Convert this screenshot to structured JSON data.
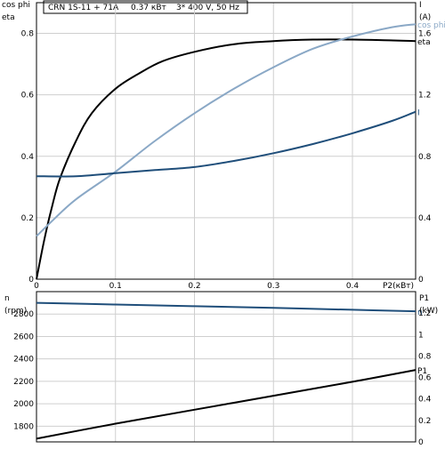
{
  "header": {
    "model": "CRN 1S-11 + 71A",
    "power": "0.37 кВт",
    "supply": "3* 400 V, 50 Hz"
  },
  "colors": {
    "eta": "#000000",
    "cos_phi": "#8aa8c6",
    "current": "#1f4e7a",
    "speed": "#1f4e7a",
    "p1": "#000000",
    "grid": "#cfcfcf",
    "axis": "#000000"
  },
  "chart_data": [
    {
      "type": "line",
      "xlabel": "P2(кВт)",
      "xlim": [
        0,
        0.48
      ],
      "x_ticks": [
        0,
        0.1,
        0.2,
        0.3,
        0.4
      ],
      "x_tick_labels": [
        "0",
        "0.1",
        "0.2",
        "0.3",
        "0.4"
      ],
      "y_left": {
        "labels": [
          "cos phi",
          "eta"
        ],
        "lim": [
          0,
          0.9
        ],
        "ticks": [
          0,
          0.2,
          0.4,
          0.6,
          0.8
        ],
        "tick_labels": [
          "0",
          "0.2",
          "0.4",
          "0.6",
          "0.8"
        ]
      },
      "y_right": {
        "labels": [
          "I",
          "(A)"
        ],
        "lim": [
          0,
          1.8
        ],
        "ticks": [
          0,
          0.4,
          0.8,
          1.2,
          1.6
        ],
        "tick_labels": [
          "0",
          "0.4",
          "0.8",
          "1.2",
          "1.6"
        ]
      },
      "series": [
        {
          "name": "eta",
          "axis": "left",
          "color_key": "eta",
          "x": [
            0,
            0.01,
            0.02,
            0.03,
            0.05,
            0.07,
            0.1,
            0.13,
            0.16,
            0.2,
            0.25,
            0.3,
            0.35,
            0.4,
            0.44,
            0.48
          ],
          "y": [
            0,
            0.13,
            0.24,
            0.33,
            0.45,
            0.54,
            0.62,
            0.67,
            0.71,
            0.74,
            0.765,
            0.775,
            0.78,
            0.78,
            0.778,
            0.775
          ]
        },
        {
          "name": "cos phi",
          "axis": "left",
          "color_key": "cos_phi",
          "x": [
            0,
            0.02,
            0.05,
            0.1,
            0.15,
            0.2,
            0.25,
            0.3,
            0.35,
            0.4,
            0.45,
            0.48
          ],
          "y": [
            0.14,
            0.19,
            0.26,
            0.35,
            0.45,
            0.54,
            0.62,
            0.69,
            0.75,
            0.79,
            0.82,
            0.83
          ]
        },
        {
          "name": "I",
          "axis": "right",
          "color_key": "current",
          "x": [
            0,
            0.05,
            0.1,
            0.15,
            0.2,
            0.25,
            0.3,
            0.35,
            0.4,
            0.45,
            0.48
          ],
          "y": [
            0.67,
            0.67,
            0.69,
            0.71,
            0.73,
            0.77,
            0.82,
            0.88,
            0.95,
            1.03,
            1.09
          ]
        }
      ]
    },
    {
      "type": "line",
      "xlim": [
        0,
        0.48
      ],
      "y_left": {
        "labels": [
          "n",
          "(rpm)"
        ],
        "lim": [
          1660,
          3000
        ],
        "ticks": [
          1800,
          2000,
          2200,
          2400,
          2600,
          2800
        ],
        "tick_labels": [
          "1800",
          "2000",
          "2200",
          "2400",
          "2600",
          "2800"
        ]
      },
      "y_right": {
        "labels": [
          "P1",
          "(kW)"
        ],
        "lim": [
          0,
          1.4
        ],
        "ticks": [
          0,
          0.2,
          0.4,
          0.6,
          0.8,
          1.0,
          1.2
        ],
        "tick_labels": [
          "0",
          "0.2",
          "0.4",
          "0.6",
          "0.8",
          "1",
          "1.2"
        ]
      },
      "series": [
        {
          "name": "n",
          "axis": "left",
          "color_key": "speed",
          "x": [
            0,
            0.1,
            0.2,
            0.3,
            0.4,
            0.48
          ],
          "y": [
            2900,
            2885,
            2870,
            2855,
            2838,
            2825
          ]
        },
        {
          "name": "P1",
          "axis": "right",
          "color_key": "p1",
          "x": [
            0,
            0.1,
            0.2,
            0.3,
            0.4,
            0.48
          ],
          "y": [
            0.03,
            0.17,
            0.3,
            0.43,
            0.56,
            0.67
          ]
        }
      ]
    }
  ]
}
